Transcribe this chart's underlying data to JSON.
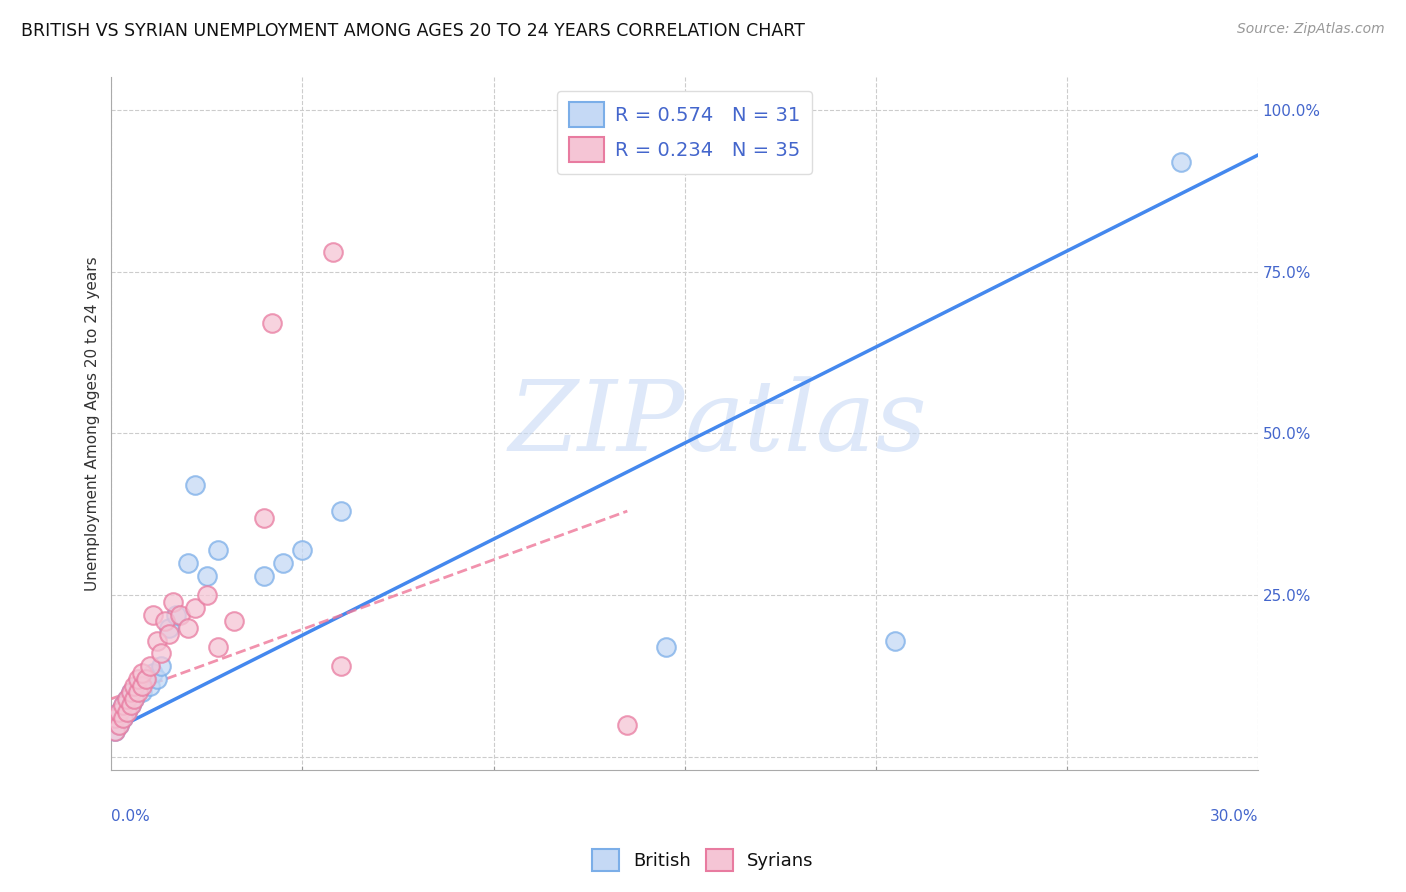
{
  "title": "BRITISH VS SYRIAN UNEMPLOYMENT AMONG AGES 20 TO 24 YEARS CORRELATION CHART",
  "source": "Source: ZipAtlas.com",
  "ylabel": "Unemployment Among Ages 20 to 24 years",
  "watermark": "ZIPatlas",
  "legend_british": "British",
  "legend_syrians": "Syrians",
  "british_R": "R = 0.574",
  "british_N": "N = 31",
  "syrian_R": "R = 0.234",
  "syrian_N": "N = 35",
  "british_color": "#c5d9f5",
  "british_edge_color": "#7baee8",
  "syrian_color": "#f5c5d5",
  "syrian_edge_color": "#e87ba0",
  "british_line_color": "#4488ee",
  "syrian_line_color": "#ee7799",
  "xmin": 0.0,
  "xmax": 0.3,
  "ymin": -0.02,
  "ymax": 1.05,
  "right_ytick_vals": [
    0.0,
    0.25,
    0.5,
    0.75,
    1.0
  ],
  "right_ytick_labels": [
    "",
    "25.0%",
    "50.0%",
    "75.0%",
    "100.0%"
  ],
  "grid_color": "#cccccc",
  "background_color": "#ffffff",
  "british_x": [
    0.001,
    0.001,
    0.002,
    0.002,
    0.003,
    0.003,
    0.004,
    0.004,
    0.005,
    0.005,
    0.006,
    0.007,
    0.008,
    0.009,
    0.01,
    0.011,
    0.012,
    0.013,
    0.015,
    0.017,
    0.02,
    0.022,
    0.025,
    0.028,
    0.04,
    0.045,
    0.05,
    0.06,
    0.145,
    0.205,
    0.28
  ],
  "british_y": [
    0.04,
    0.06,
    0.05,
    0.07,
    0.06,
    0.08,
    0.07,
    0.09,
    0.08,
    0.1,
    0.09,
    0.11,
    0.1,
    0.12,
    0.11,
    0.13,
    0.12,
    0.14,
    0.2,
    0.22,
    0.3,
    0.42,
    0.28,
    0.32,
    0.28,
    0.3,
    0.32,
    0.38,
    0.17,
    0.18,
    0.92
  ],
  "syrian_x": [
    0.001,
    0.001,
    0.002,
    0.002,
    0.003,
    0.003,
    0.004,
    0.004,
    0.005,
    0.005,
    0.006,
    0.006,
    0.007,
    0.007,
    0.008,
    0.008,
    0.009,
    0.01,
    0.011,
    0.012,
    0.013,
    0.014,
    0.015,
    0.016,
    0.018,
    0.02,
    0.022,
    0.025,
    0.028,
    0.032,
    0.04,
    0.042,
    0.058,
    0.06,
    0.135
  ],
  "syrian_y": [
    0.04,
    0.06,
    0.05,
    0.07,
    0.06,
    0.08,
    0.07,
    0.09,
    0.08,
    0.1,
    0.09,
    0.11,
    0.1,
    0.12,
    0.11,
    0.13,
    0.12,
    0.14,
    0.22,
    0.18,
    0.16,
    0.21,
    0.19,
    0.24,
    0.22,
    0.2,
    0.23,
    0.25,
    0.17,
    0.21,
    0.37,
    0.67,
    0.78,
    0.14,
    0.05
  ],
  "brit_line_xstart": 0.0,
  "brit_line_xend": 0.3,
  "brit_line_ystart": 0.04,
  "brit_line_yend": 0.93,
  "syr_line_xstart": 0.0,
  "syr_line_xend": 0.135,
  "syr_line_ystart": 0.09,
  "syr_line_yend": 0.38
}
